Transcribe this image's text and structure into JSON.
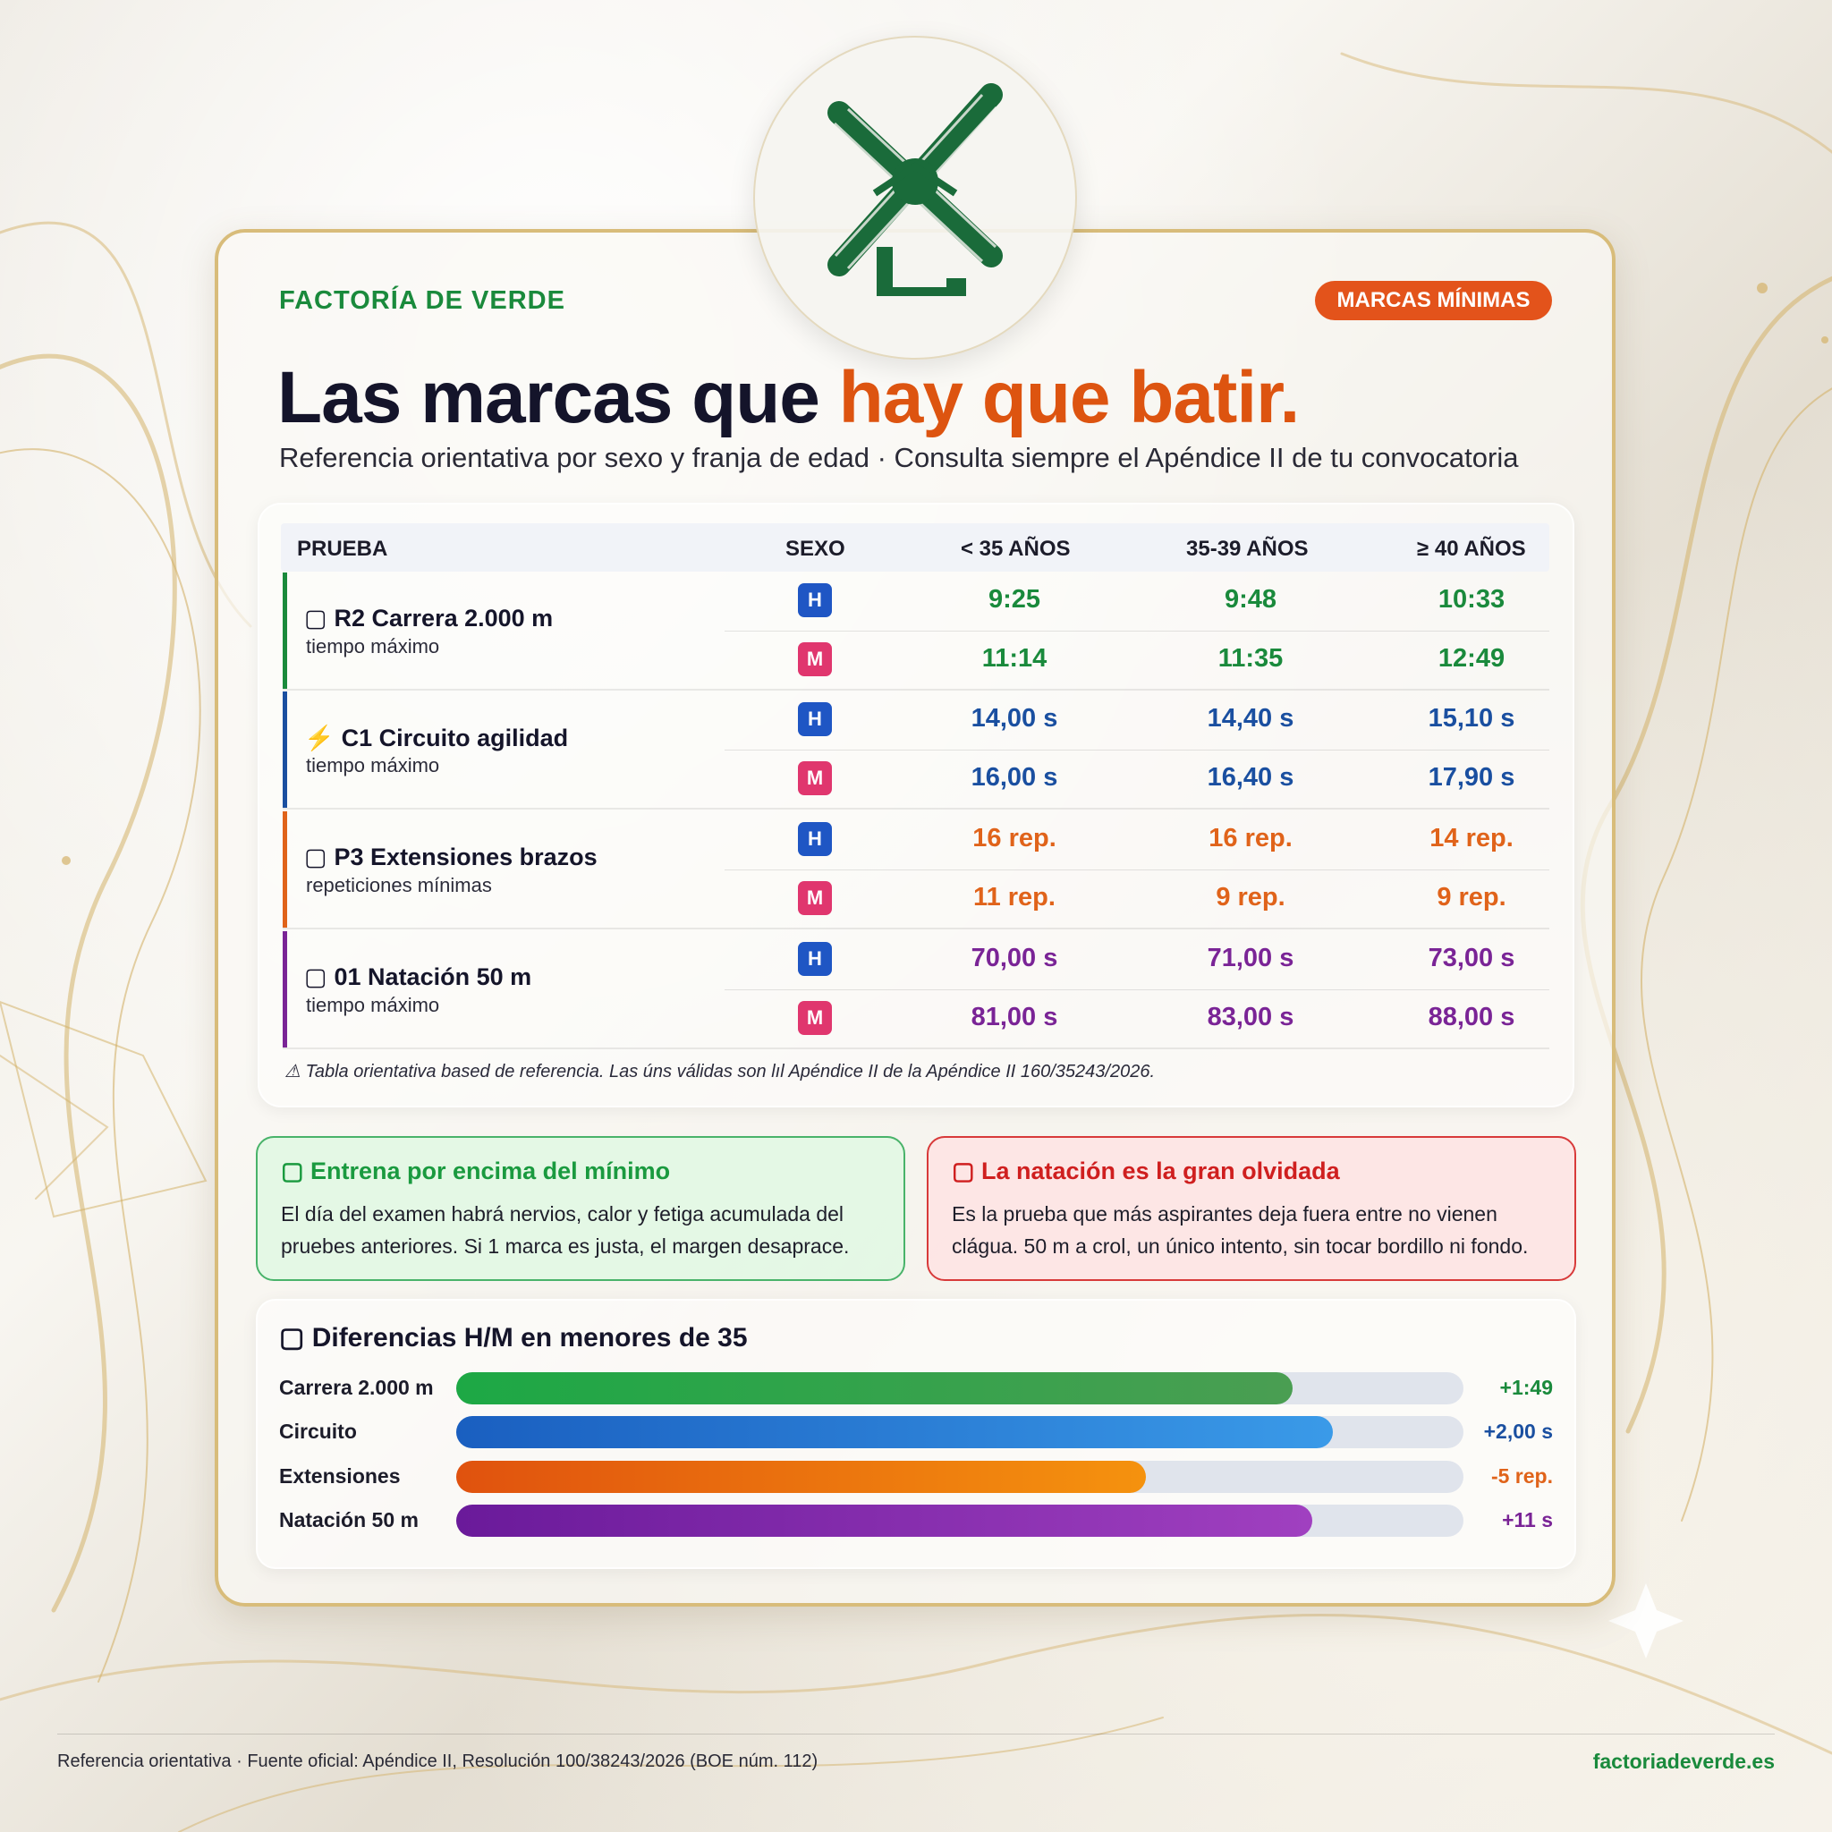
{
  "brand": "FACTORÍA DE VERDE",
  "badge": "MARCAS MÍNIMAS",
  "title": {
    "main": "Las marcas que ",
    "accent": "hay que batir."
  },
  "subtitle": "Referencia orientativa por sexo y franja de edad · Consulta siempre el Apéndice II de tu convocatoria",
  "colors": {
    "green": "#1a8a3c",
    "blue": "#1a4fa0",
    "orange": "#e0631a",
    "purple": "#7a2496",
    "accent": "#dd5410"
  },
  "table": {
    "headers": [
      "PRUEBA",
      "SEXO",
      "< 35 AÑOS",
      "35-39 AÑOS",
      "≥ 40 AÑOS"
    ],
    "groups": [
      {
        "icon": "",
        "name": "R2 Carrera 2.000 m",
        "sub": "tiempo máximo",
        "color": "#1a8a3c",
        "rows": [
          {
            "sex": "H",
            "values": [
              "9:25",
              "9:48",
              "10:33"
            ]
          },
          {
            "sex": "M",
            "values": [
              "11:14",
              "11:35",
              "12:49"
            ]
          }
        ]
      },
      {
        "icon": "⚡",
        "name": "C1 Circuito agilidad",
        "sub": "tiempo máximo",
        "color": "#1a4fa0",
        "rows": [
          {
            "sex": "H",
            "values": [
              "14,00 s",
              "14,40 s",
              "15,10 s"
            ]
          },
          {
            "sex": "M",
            "values": [
              "16,00 s",
              "16,40 s",
              "17,90 s"
            ]
          }
        ]
      },
      {
        "icon": "",
        "name": "P3 Extensiones brazos",
        "sub": "repeticiones mínimas",
        "color": "#e0631a",
        "rows": [
          {
            "sex": "H",
            "values": [
              "16 rep.",
              "16 rep.",
              "14 rep."
            ]
          },
          {
            "sex": "M",
            "values": [
              "11 rep.",
              "9 rep.",
              "9 rep."
            ]
          }
        ]
      },
      {
        "icon": "",
        "name": "01 Natación 50 m",
        "sub": "tiempo máximo",
        "color": "#7a2496",
        "rows": [
          {
            "sex": "H",
            "values": [
              "70,00 s",
              "71,00 s",
              "73,00 s"
            ]
          },
          {
            "sex": "M",
            "values": [
              "81,00 s",
              "83,00 s",
              "88,00 s"
            ]
          }
        ]
      }
    ],
    "note": "⚠ Tabla orientativa based de referencia. Las úns válidas son lıl Apéndice II de la Apéndice II 160/35243/2026."
  },
  "tips": [
    {
      "title": "Entrena por encima del mínimo",
      "body": "El día del examen habrá nervios, calor y fetiga acumulada del pruebes anteriores. Si 1 marca es justa, el margen desaprace."
    },
    {
      "title": "La natación es la gran olvidada",
      "body": "Es la prueba que más aspirantes deja fuera entre no vienen clágua. 50 m a crol, un único intento, sin tocar bordillo ni fondo."
    }
  ],
  "differences": {
    "title": "Diferencias H/M en menores de 35",
    "rows": [
      {
        "label": "Carrera 2.000 m",
        "value": "+1:49",
        "fill": 0.83,
        "color": "#1a8a3c",
        "gradient": [
          "#1da845",
          "#4a9e52"
        ]
      },
      {
        "label": "Circuito",
        "value": "+2,00 s",
        "fill": 0.87,
        "color": "#1a4fa0",
        "gradient": [
          "#1a5fc0",
          "#3a9ae8"
        ]
      },
      {
        "label": "Extensiones",
        "value": "-5 rep.",
        "fill": 0.685,
        "color": "#e0631a",
        "gradient": [
          "#e0520e",
          "#f5920e"
        ]
      },
      {
        "label": "Natación 50 m",
        "value": "+11 s",
        "fill": 0.85,
        "color": "#7a2496",
        "gradient": [
          "#6a1a9a",
          "#a040c0"
        ]
      }
    ]
  },
  "footer": {
    "left": "Referencia orientativa · Fuente oficial: Apéndice II, Resolución 100/38243/2026 (BOE núm. 112)",
    "right": "factoriadeverde.es"
  }
}
